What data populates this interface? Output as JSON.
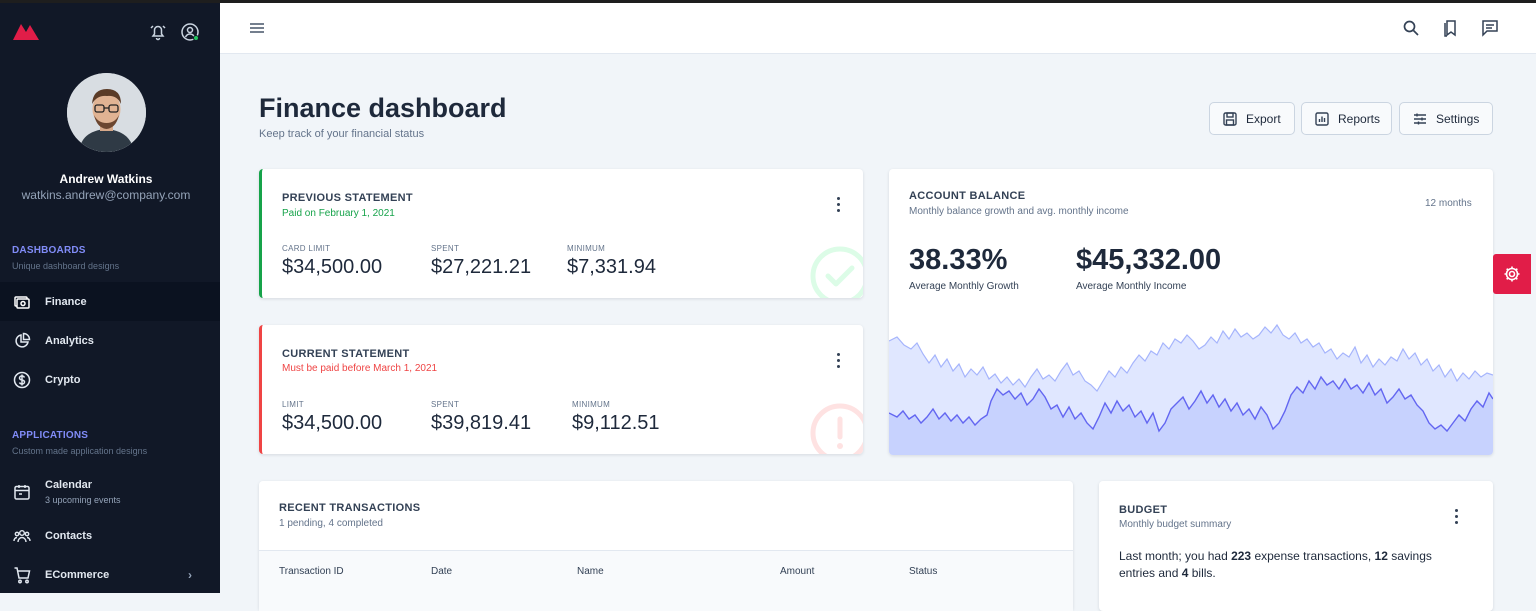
{
  "colors": {
    "accent": "#818cf8",
    "sidebar": "#111827",
    "green": "#16a34a",
    "red": "#ef4444",
    "fab": "#e11d48"
  },
  "user": {
    "name": "Andrew Watkins",
    "email": "watkins.andrew@company.com"
  },
  "sidebar": {
    "dashboards": {
      "title": "DASHBOARDS",
      "subtitle": "Unique dashboard designs"
    },
    "items": [
      {
        "label": "Finance",
        "icon": "cash-icon"
      },
      {
        "label": "Analytics",
        "icon": "pie-chart-icon"
      },
      {
        "label": "Crypto",
        "icon": "currency-dollar-icon"
      }
    ],
    "applications": {
      "title": "APPLICATIONS",
      "subtitle": "Custom made application designs"
    },
    "apps": [
      {
        "label": "Calendar",
        "sub": "3 upcoming events",
        "icon": "calendar-icon"
      },
      {
        "label": "Contacts",
        "icon": "users-icon"
      },
      {
        "label": "ECommerce",
        "icon": "cart-icon"
      }
    ]
  },
  "header": {
    "title": "Finance dashboard",
    "subtitle": "Keep track of your financial status",
    "buttons": {
      "export": "Export",
      "reports": "Reports",
      "settings": "Settings"
    }
  },
  "previous": {
    "title": "PREVIOUS STATEMENT",
    "status": "Paid on February 1, 2021",
    "l1": "CARD LIMIT",
    "v1": "$34,500.00",
    "l2": "SPENT",
    "v2": "$27,221.21",
    "l3": "MINIMUM",
    "v3": "$7,331.94"
  },
  "current": {
    "title": "CURRENT STATEMENT",
    "status": "Must be paid before March 1, 2021",
    "l1": "LIMIT",
    "v1": "$34,500.00",
    "l2": "SPENT",
    "v2": "$39,819.41",
    "l3": "MINIMUM",
    "v3": "$9,112.51"
  },
  "balance": {
    "title": "ACCOUNT BALANCE",
    "subtitle": "Monthly balance growth and avg. monthly income",
    "range": "12 months",
    "growth": "38.33%",
    "growth_label": "Average Monthly Growth",
    "income": "$45,332.00",
    "income_label": "Average Monthly Income"
  },
  "transactions": {
    "title": "RECENT TRANSACTIONS",
    "subtitle": "1 pending, 4 completed",
    "columns": [
      "Transaction ID",
      "Date",
      "Name",
      "Amount",
      "Status"
    ]
  },
  "budget": {
    "title": "BUDGET",
    "subtitle": "Monthly budget summary",
    "t1": "Last month; you had ",
    "n1": "223",
    "t2": " expense transactions, ",
    "n2": "12",
    "t3": " savings",
    "t4": "entries and ",
    "n3": "4",
    "t5": " bills."
  }
}
